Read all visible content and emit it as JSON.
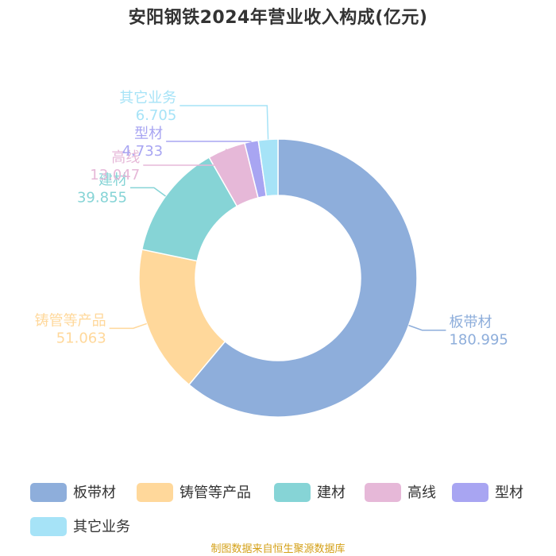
{
  "title": "安阳钢铁2024年营业收入构成(亿元)",
  "source": "制图数据来自恒生聚源数据库",
  "chart_data": {
    "type": "pie",
    "variant": "donut",
    "title": "安阳钢铁2024年营业收入构成(亿元)",
    "legend_position": "bottom",
    "slices": [
      {
        "label": "板带材",
        "value": 180.995,
        "value_text": "180.995",
        "color": "#8eaedb"
      },
      {
        "label": "铸管等产品",
        "value": 51.063,
        "value_text": "51.063",
        "color": "#ffd89b"
      },
      {
        "label": "建材",
        "value": 39.855,
        "value_text": "39.855",
        "color": "#86d4d6"
      },
      {
        "label": "高线",
        "value": 13.047,
        "value_text": "13.047",
        "color": "#e6b8d8"
      },
      {
        "label": "型材",
        "value": 4.733,
        "value_text": "4.733",
        "color": "#a8a5f2"
      },
      {
        "label": "其它业务",
        "value": 6.705,
        "value_text": "6.705",
        "color": "#a6e3f7"
      }
    ]
  }
}
